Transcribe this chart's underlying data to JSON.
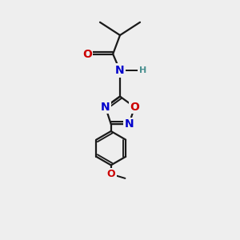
{
  "bg_color": "#eeeeee",
  "bond_color": "#1a1a1a",
  "bond_width": 1.6,
  "atom_colors": {
    "O": "#cc0000",
    "N": "#0000cc",
    "H": "#4a9090",
    "C": "#1a1a1a"
  },
  "font_size_atom": 10,
  "font_size_small": 8,
  "xlim": [
    0,
    10
  ],
  "ylim": [
    0,
    10
  ]
}
